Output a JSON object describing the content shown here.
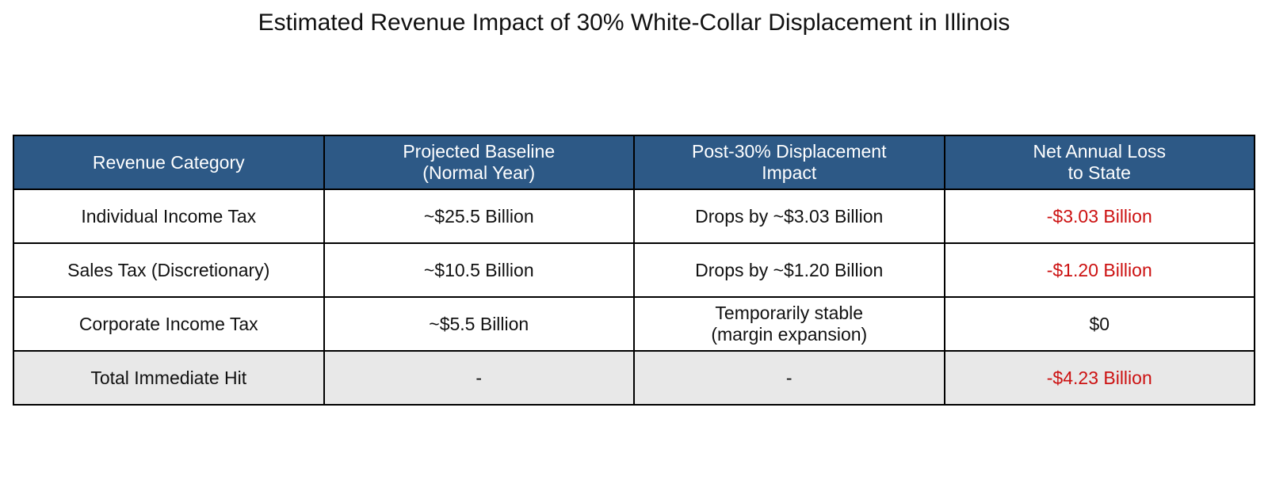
{
  "chart_data": {
    "type": "table",
    "title": "Estimated Revenue Impact of 30% White-Collar Displacement in Illinois",
    "columns": [
      [
        "Revenue Category"
      ],
      [
        "Projected Baseline",
        "(Normal Year)"
      ],
      [
        "Post-30% Displacement",
        "Impact"
      ],
      [
        "Net Annual Loss",
        "to State"
      ]
    ],
    "rows": [
      {
        "category": "Individual Income Tax",
        "baseline": "~$25.5 Billion",
        "impact": [
          "Drops by ~$3.03 Billion"
        ],
        "loss": "-$3.03 Billion",
        "loss_negative": true
      },
      {
        "category": "Sales Tax (Discretionary)",
        "baseline": "~$10.5 Billion",
        "impact": [
          "Drops by ~$1.20 Billion"
        ],
        "loss": "-$1.20 Billion",
        "loss_negative": true
      },
      {
        "category": "Corporate Income Tax",
        "baseline": "~$5.5 Billion",
        "impact": [
          "Temporarily stable",
          "(margin expansion)"
        ],
        "loss": "$0",
        "loss_negative": false
      }
    ],
    "total": {
      "category": "Total Immediate Hit",
      "baseline": "-",
      "impact": "-",
      "loss": "-$4.23 Billion"
    }
  },
  "colors": {
    "header_bg": "#2d5986",
    "header_text": "#ffffff",
    "loss_text": "#cc1111",
    "total_row_bg": "#e8e8e8"
  }
}
